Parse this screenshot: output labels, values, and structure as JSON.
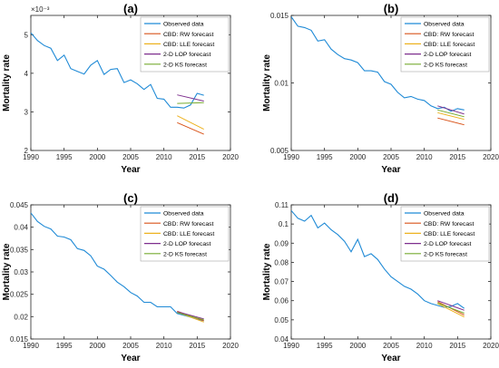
{
  "legend_labels": [
    "Observed data",
    "CBD: RW forecast",
    "CBD: LLE forecast",
    "2-D LOP forecast",
    "2-D KS forecast"
  ],
  "colors": {
    "observed": "#1f8ad6",
    "rw": "#d9541a",
    "lle": "#edb21f",
    "lop": "#7e2f8e",
    "ks": "#77ac30",
    "axis": "#262626",
    "grid_text": "#262626"
  },
  "chart_data": [
    {
      "type": "line",
      "title": "(a)",
      "xlabel": "Year",
      "ylabel": "Mortality rate",
      "exponent_label": "×10⁻³",
      "xlim": [
        1990,
        2020
      ],
      "ylim": [
        2,
        5.5
      ],
      "xticks": [
        1990,
        1995,
        2000,
        2005,
        2010,
        2015,
        2020
      ],
      "yticks": [
        2,
        3,
        4,
        5
      ],
      "ytick_labels": [
        "2",
        "3",
        "4",
        "5"
      ],
      "legend_position": "top-right",
      "series": [
        {
          "name": "Observed data",
          "key": "observed",
          "x": [
            1990,
            1991,
            1992,
            1993,
            1994,
            1995,
            1996,
            1997,
            1998,
            1999,
            2000,
            2001,
            2002,
            2003,
            2004,
            2005,
            2006,
            2007,
            2008,
            2009,
            2010,
            2011,
            2012,
            2013,
            2014,
            2015,
            2016
          ],
          "y": [
            5.05,
            4.85,
            4.72,
            4.65,
            4.33,
            4.47,
            4.12,
            4.05,
            3.98,
            4.21,
            4.33,
            3.97,
            4.1,
            4.12,
            3.76,
            3.83,
            3.73,
            3.58,
            3.71,
            3.35,
            3.33,
            3.12,
            3.12,
            3.1,
            3.18,
            3.48,
            3.43
          ]
        },
        {
          "name": "CBD: RW forecast",
          "key": "rw",
          "x": [
            2012,
            2016
          ],
          "y": [
            2.72,
            2.42
          ]
        },
        {
          "name": "CBD: LLE forecast",
          "key": "lle",
          "x": [
            2012,
            2016
          ],
          "y": [
            2.9,
            2.55
          ]
        },
        {
          "name": "2-D LOP forecast",
          "key": "lop",
          "x": [
            2012,
            2016
          ],
          "y": [
            3.44,
            3.28
          ]
        },
        {
          "name": "2-D KS forecast",
          "key": "ks",
          "x": [
            2012,
            2016
          ],
          "y": [
            3.22,
            3.24
          ]
        }
      ]
    },
    {
      "type": "line",
      "title": "(b)",
      "xlabel": "Year",
      "ylabel": "Mortality rate",
      "xlim": [
        1990,
        2020
      ],
      "ylim": [
        0.005,
        0.015
      ],
      "xticks": [
        1990,
        1995,
        2000,
        2005,
        2010,
        2015,
        2020
      ],
      "yticks": [
        0.005,
        0.01,
        0.015
      ],
      "ytick_labels": [
        "0.005",
        "0.01",
        "0.015"
      ],
      "legend_position": "top-right",
      "series": [
        {
          "name": "Observed data",
          "key": "observed",
          "x": [
            1990,
            1991,
            1992,
            1993,
            1994,
            1995,
            1996,
            1997,
            1998,
            1999,
            2000,
            2001,
            2002,
            2003,
            2004,
            2005,
            2006,
            2007,
            2008,
            2009,
            2010,
            2011,
            2012,
            2013,
            2014,
            2015,
            2016
          ],
          "y": [
            0.0149,
            0.0142,
            0.0141,
            0.0139,
            0.0131,
            0.0132,
            0.0125,
            0.0121,
            0.0118,
            0.0117,
            0.0115,
            0.0109,
            0.0109,
            0.0108,
            0.0101,
            0.0099,
            0.0093,
            0.0089,
            0.009,
            0.0088,
            0.0087,
            0.0083,
            0.0081,
            0.0082,
            0.0079,
            0.0081,
            0.008
          ]
        },
        {
          "name": "CBD: RW forecast",
          "key": "rw",
          "x": [
            2012,
            2016
          ],
          "y": [
            0.0074,
            0.0069
          ]
        },
        {
          "name": "CBD: LLE forecast",
          "key": "lle",
          "x": [
            2012,
            2016
          ],
          "y": [
            0.0078,
            0.0073
          ]
        },
        {
          "name": "2-D LOP forecast",
          "key": "lop",
          "x": [
            2012,
            2016
          ],
          "y": [
            0.0083,
            0.0077
          ]
        },
        {
          "name": "2-D KS forecast",
          "key": "ks",
          "x": [
            2012,
            2016
          ],
          "y": [
            0.008,
            0.0075
          ]
        }
      ]
    },
    {
      "type": "line",
      "title": "(c)",
      "xlabel": "Year",
      "ylabel": "Mortality rate",
      "xlim": [
        1990,
        2020
      ],
      "ylim": [
        0.015,
        0.045
      ],
      "xticks": [
        1990,
        1995,
        2000,
        2005,
        2010,
        2015,
        2020
      ],
      "yticks": [
        0.015,
        0.02,
        0.025,
        0.03,
        0.035,
        0.04,
        0.045
      ],
      "ytick_labels": [
        "0.015",
        "0.02",
        "0.025",
        "0.03",
        "0.035",
        "0.04",
        "0.045"
      ],
      "legend_position": "top-right",
      "series": [
        {
          "name": "Observed data",
          "key": "observed",
          "x": [
            1990,
            1991,
            1992,
            1993,
            1994,
            1995,
            1996,
            1997,
            1998,
            1999,
            2000,
            2001,
            2002,
            2003,
            2004,
            2005,
            2006,
            2007,
            2008,
            2009,
            2010,
            2011,
            2012,
            2013,
            2014,
            2015,
            2016
          ],
          "y": [
            0.0432,
            0.0413,
            0.0402,
            0.0396,
            0.038,
            0.0378,
            0.0372,
            0.0352,
            0.0348,
            0.0336,
            0.0313,
            0.0306,
            0.0292,
            0.0277,
            0.0267,
            0.0254,
            0.0246,
            0.0232,
            0.0232,
            0.0222,
            0.0222,
            0.0222,
            0.0207,
            0.0203,
            0.0199,
            0.0194,
            0.0191
          ]
        },
        {
          "name": "CBD: RW forecast",
          "key": "rw",
          "x": [
            2012,
            2016
          ],
          "y": [
            0.0212,
            0.0191
          ]
        },
        {
          "name": "CBD: LLE forecast",
          "key": "lle",
          "x": [
            2012,
            2016
          ],
          "y": [
            0.021,
            0.0188
          ]
        },
        {
          "name": "2-D LOP forecast",
          "key": "lop",
          "x": [
            2012,
            2016
          ],
          "y": [
            0.0211,
            0.0195
          ]
        },
        {
          "name": "2-D KS forecast",
          "key": "ks",
          "x": [
            2012,
            2016
          ],
          "y": [
            0.0209,
            0.0193
          ]
        }
      ]
    },
    {
      "type": "line",
      "title": "(d)",
      "xlabel": "Year",
      "ylabel": "Mortality rate",
      "xlim": [
        1990,
        2020
      ],
      "ylim": [
        0.04,
        0.11
      ],
      "xticks": [
        1990,
        1995,
        2000,
        2005,
        2010,
        2015,
        2020
      ],
      "yticks": [
        0.04,
        0.05,
        0.06,
        0.07,
        0.08,
        0.09,
        0.1,
        0.11
      ],
      "ytick_labels": [
        "0.04",
        "0.05",
        "0.06",
        "0.07",
        "0.08",
        "0.09",
        "0.1",
        "0.11"
      ],
      "legend_position": "top-right",
      "series": [
        {
          "name": "Observed data",
          "key": "observed",
          "x": [
            1990,
            1991,
            1992,
            1993,
            1994,
            1995,
            1996,
            1997,
            1998,
            1999,
            2000,
            2001,
            2002,
            2003,
            2004,
            2005,
            2006,
            2007,
            2008,
            2009,
            2010,
            2011,
            2012,
            2013,
            2014,
            2015,
            2016
          ],
          "y": [
            0.107,
            0.103,
            0.1015,
            0.1045,
            0.098,
            0.1005,
            0.097,
            0.0945,
            0.091,
            0.0855,
            0.092,
            0.083,
            0.0845,
            0.0815,
            0.0765,
            0.0725,
            0.07,
            0.0675,
            0.066,
            0.0635,
            0.06,
            0.0585,
            0.0575,
            0.0565,
            0.057,
            0.0585,
            0.056
          ]
        },
        {
          "name": "CBD: RW forecast",
          "key": "rw",
          "x": [
            2012,
            2016
          ],
          "y": [
            0.0595,
            0.0525
          ]
        },
        {
          "name": "CBD: LLE forecast",
          "key": "lle",
          "x": [
            2012,
            2016
          ],
          "y": [
            0.0585,
            0.0515
          ]
        },
        {
          "name": "2-D LOP forecast",
          "key": "lop",
          "x": [
            2012,
            2016
          ],
          "y": [
            0.06,
            0.055
          ]
        },
        {
          "name": "2-D KS forecast",
          "key": "ks",
          "x": [
            2012,
            2016
          ],
          "y": [
            0.0588,
            0.0535
          ]
        }
      ]
    }
  ]
}
